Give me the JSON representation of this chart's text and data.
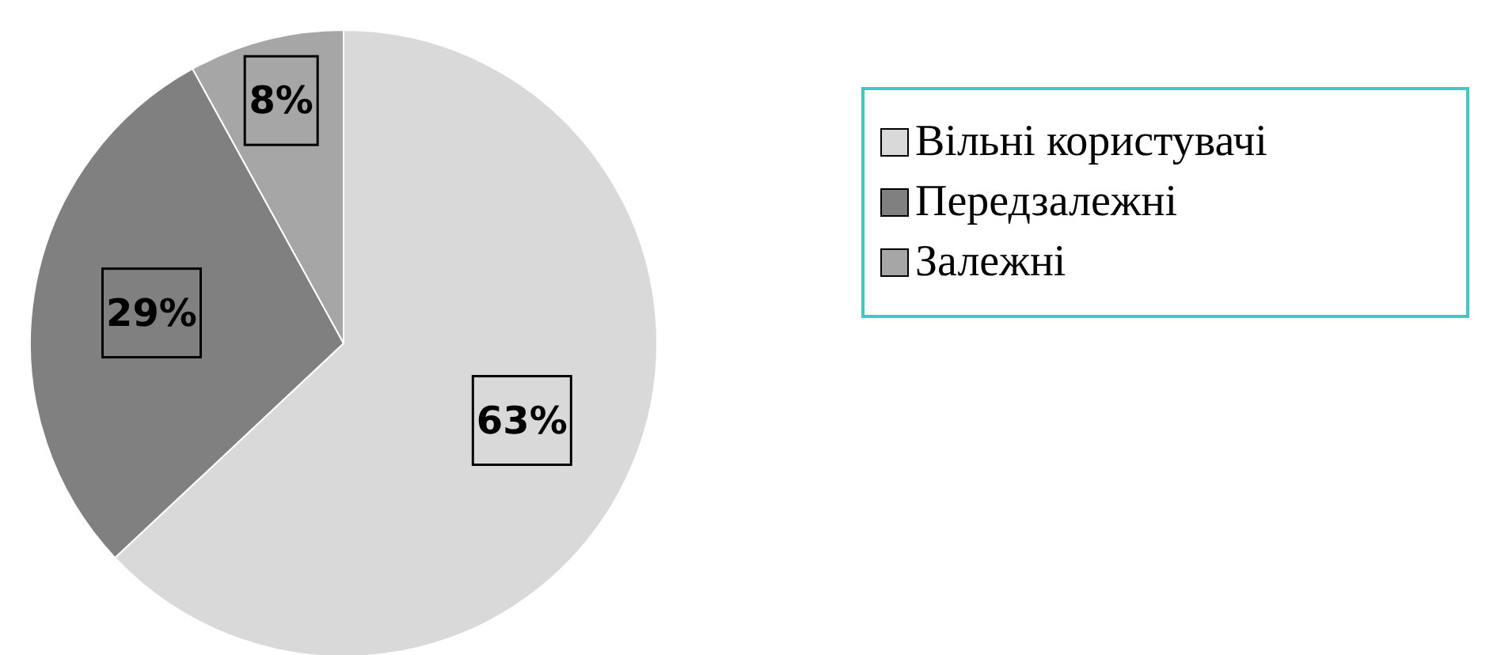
{
  "chart_data": {
    "type": "pie",
    "categories": [
      "Вільні користувачі",
      "Передзалежні",
      "Залежні"
    ],
    "values": [
      63,
      29,
      8
    ],
    "colors": [
      "#d9d9d9",
      "#808080",
      "#a6a6a6"
    ],
    "value_labels": [
      "63%",
      "29%",
      "8%"
    ],
    "legend": "right"
  }
}
